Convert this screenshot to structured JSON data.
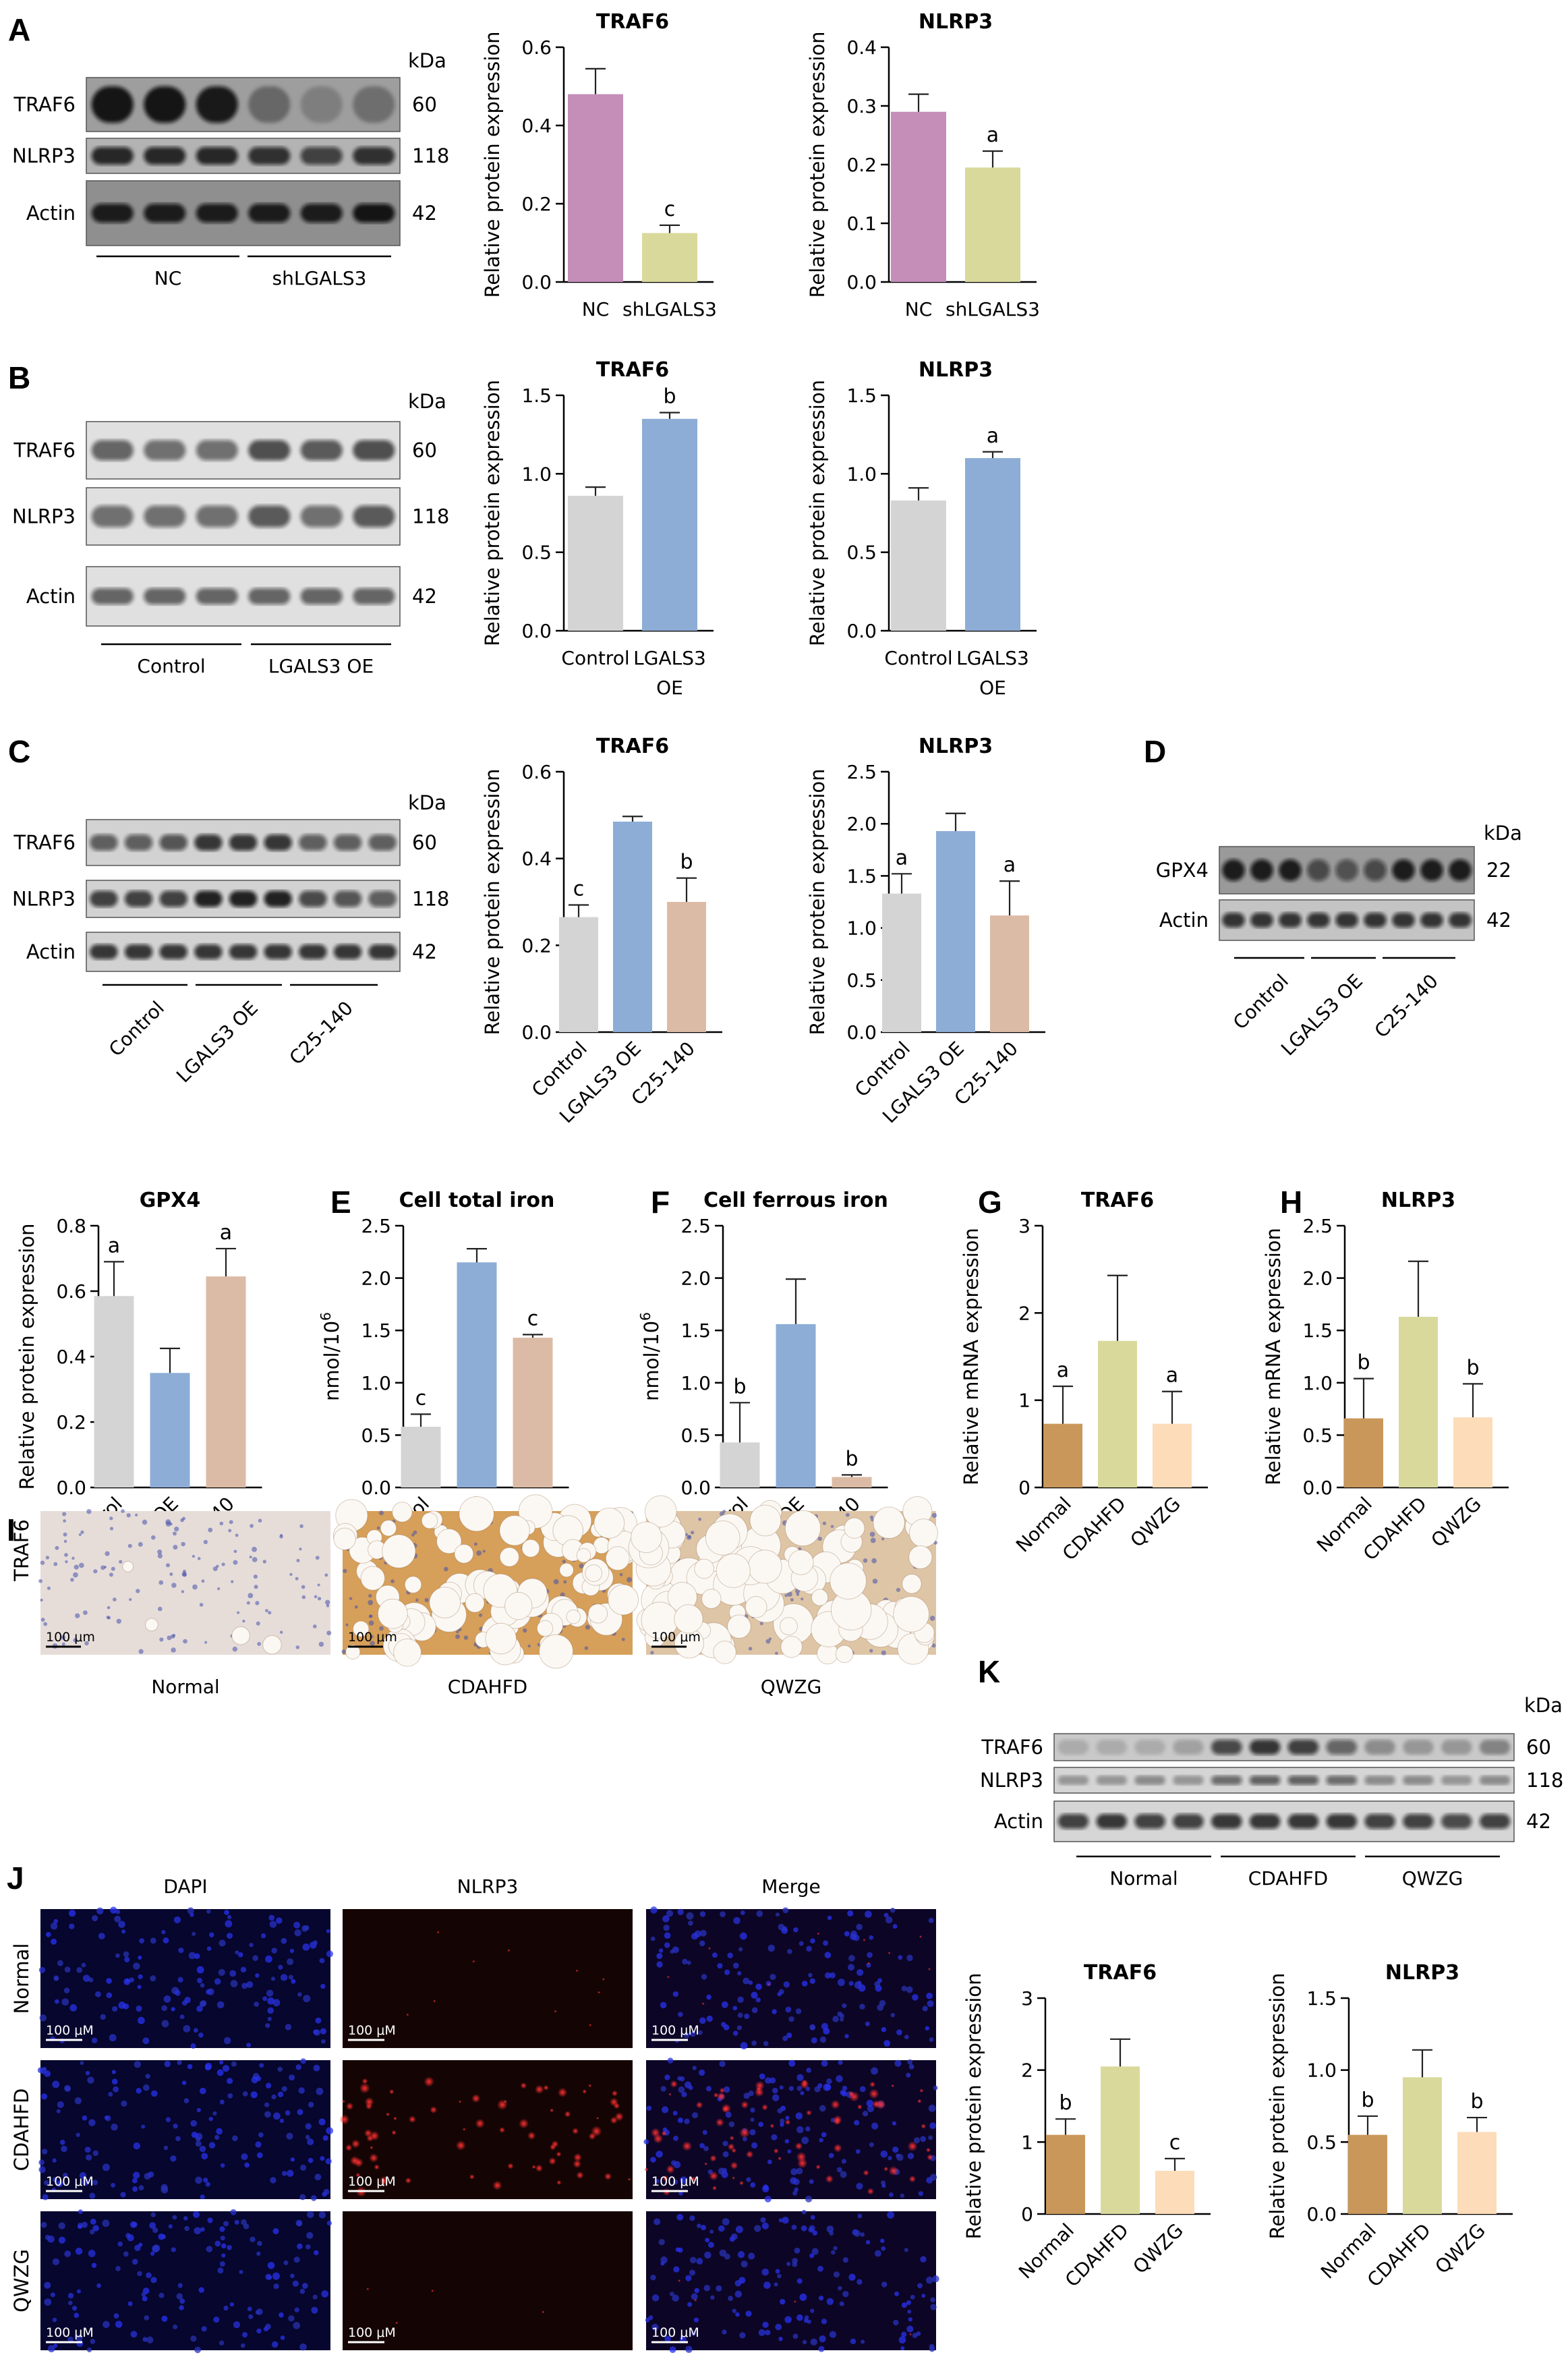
{
  "colors": {
    "pink": "#C48EB9",
    "olive": "#D9D99C",
    "gray": "#D4D4D4",
    "blue": "#8DADD6",
    "tan": "#DCBBA6",
    "brown": "#C9975A",
    "cream": "#FCDCB9"
  },
  "blots": {
    "A": {
      "label": "A",
      "rows": [
        {
          "name": "TRAF6",
          "kda": "60"
        },
        {
          "name": "NLRP3",
          "kda": "118"
        },
        {
          "name": "Actin",
          "kda": "42"
        }
      ],
      "kda_unit": "kDa",
      "groups": [
        "NC",
        "shLGALS3"
      ]
    },
    "B": {
      "label": "B",
      "rows": [
        {
          "name": "TRAF6",
          "kda": "60"
        },
        {
          "name": "NLRP3",
          "kda": "118"
        },
        {
          "name": "Actin",
          "kda": "42"
        }
      ],
      "kda_unit": "kDa",
      "groups": [
        "Control",
        "LGALS3 OE"
      ]
    },
    "C": {
      "label": "C",
      "rows": [
        {
          "name": "TRAF6",
          "kda": "60"
        },
        {
          "name": "NLRP3",
          "kda": "118"
        },
        {
          "name": "Actin",
          "kda": "42"
        }
      ],
      "kda_unit": "kDa",
      "groups": [
        "Control",
        "LGALS3 OE",
        "C25-140"
      ]
    },
    "D": {
      "label": "D",
      "rows": [
        {
          "name": "GPX4",
          "kda": "22"
        },
        {
          "name": "Actin",
          "kda": "42"
        }
      ],
      "kda_unit": "kDa",
      "groups": [
        "Control",
        "LGALS3 OE",
        "C25-140"
      ]
    },
    "K": {
      "label": "K",
      "rows": [
        {
          "name": "TRAF6",
          "kda": "60"
        },
        {
          "name": "NLRP3",
          "kda": "118"
        },
        {
          "name": "Actin",
          "kda": "42"
        }
      ],
      "kda_unit": "kDa",
      "groups": [
        "Normal",
        "CDAHFD",
        "QWZG"
      ]
    }
  },
  "ihc": {
    "label": "I",
    "row_label": "TRAF6",
    "columns": [
      "Normal",
      "CDAHFD",
      "QWZG"
    ],
    "scale": "100 μm"
  },
  "fluor": {
    "label": "J",
    "columns": [
      "DAPI",
      "NLRP3",
      "Merge"
    ],
    "rows": [
      "Normal",
      "CDAHFD",
      "QWZG"
    ],
    "scale": "100 μM"
  },
  "chart_data": [
    {
      "id": "A-TRAF6",
      "label": "A",
      "type": "bar",
      "title": "TRAF6",
      "ylabel": "Relative protein expression",
      "categories": [
        "NC",
        "shLGALS3"
      ],
      "values": [
        0.48,
        0.125
      ],
      "errors": [
        0.065,
        0.02
      ],
      "sig": [
        "",
        "c"
      ],
      "colors": [
        "pink",
        "olive"
      ],
      "ylim": [
        0,
        0.6
      ],
      "yticks": [
        "0.0",
        "0.2",
        "0.4",
        "0.6"
      ]
    },
    {
      "id": "A-NLRP3",
      "label": "",
      "type": "bar",
      "title": "NLRP3",
      "ylabel": "Relative protein expression",
      "categories": [
        "NC",
        "shLGALS3"
      ],
      "values": [
        0.29,
        0.195
      ],
      "errors": [
        0.03,
        0.028
      ],
      "sig": [
        "",
        "a"
      ],
      "colors": [
        "pink",
        "olive"
      ],
      "ylim": [
        0,
        0.4
      ],
      "yticks": [
        "0.0",
        "0.1",
        "0.2",
        "0.3",
        "0.4"
      ]
    },
    {
      "id": "B-TRAF6",
      "label": "B",
      "type": "bar",
      "title": "TRAF6",
      "ylabel": "Relative protein expression",
      "categories": [
        "Control",
        "LGALS3 OE"
      ],
      "values": [
        0.86,
        1.35
      ],
      "errors": [
        0.055,
        0.04
      ],
      "sig": [
        "",
        "b"
      ],
      "colors": [
        "gray",
        "blue"
      ],
      "ylim": [
        0,
        1.5
      ],
      "yticks": [
        "0.0",
        "0.5",
        "1.0",
        "1.5"
      ]
    },
    {
      "id": "B-NLRP3",
      "label": "",
      "type": "bar",
      "title": "NLRP3",
      "ylabel": "Relative protein expression",
      "categories": [
        "Control",
        "LGALS3 OE"
      ],
      "values": [
        0.83,
        1.1
      ],
      "errors": [
        0.08,
        0.04
      ],
      "sig": [
        "",
        "a"
      ],
      "colors": [
        "gray",
        "blue"
      ],
      "ylim": [
        0,
        1.5
      ],
      "yticks": [
        "0.0",
        "0.5",
        "1.0",
        "1.5"
      ]
    },
    {
      "id": "C-TRAF6",
      "label": "C",
      "type": "bar",
      "title": "TRAF6",
      "ylabel": "Relative protein expression",
      "categories": [
        "Control",
        "LGALS3 OE",
        "C25-140"
      ],
      "values": [
        0.265,
        0.485,
        0.3
      ],
      "errors": [
        0.028,
        0.012,
        0.055
      ],
      "sig": [
        "c",
        "",
        "b"
      ],
      "colors": [
        "gray",
        "blue",
        "tan"
      ],
      "ylim": [
        0,
        0.6
      ],
      "yticks": [
        "0.0",
        "0.2",
        "0.4",
        "0.6"
      ]
    },
    {
      "id": "C-NLRP3",
      "label": "",
      "type": "bar",
      "title": "NLRP3",
      "ylabel": "Relative protein expression",
      "categories": [
        "Control",
        "LGALS3 OE",
        "C25-140"
      ],
      "values": [
        1.33,
        1.93,
        1.12
      ],
      "errors": [
        0.19,
        0.17,
        0.33
      ],
      "sig": [
        "a",
        "",
        "a"
      ],
      "colors": [
        "gray",
        "blue",
        "tan"
      ],
      "ylim": [
        0,
        2.5
      ],
      "yticks": [
        "0.0",
        "0.5",
        "1.0",
        "1.5",
        "2.0",
        "2.5"
      ]
    },
    {
      "id": "D-GPX4",
      "label": "",
      "type": "bar",
      "title": "GPX4",
      "ylabel": "Relative protein expression",
      "categories": [
        "Control",
        "LGALS3 OE",
        "C25-140"
      ],
      "values": [
        0.585,
        0.35,
        0.645
      ],
      "errors": [
        0.105,
        0.075,
        0.085
      ],
      "sig": [
        "a",
        "",
        "a"
      ],
      "colors": [
        "gray",
        "blue",
        "tan"
      ],
      "ylim": [
        0,
        0.8
      ],
      "yticks": [
        "0.0",
        "0.2",
        "0.4",
        "0.6",
        "0.8"
      ]
    },
    {
      "id": "E",
      "label": "E",
      "type": "bar",
      "title": "Cell total iron",
      "ylabel": "nmol/10",
      "ylabel_sup": "6",
      "categories": [
        "Control",
        "LGALS3 OE",
        "C25-140"
      ],
      "values": [
        0.58,
        2.15,
        1.43
      ],
      "errors": [
        0.12,
        0.13,
        0.03
      ],
      "sig": [
        "c",
        "",
        "c"
      ],
      "colors": [
        "gray",
        "blue",
        "tan"
      ],
      "ylim": [
        0,
        2.5
      ],
      "yticks": [
        "0.0",
        "0.5",
        "1.0",
        "1.5",
        "2.0",
        "2.5"
      ]
    },
    {
      "id": "F",
      "label": "F",
      "type": "bar",
      "title": "Cell ferrous iron",
      "ylabel": "nmol/10",
      "ylabel_sup": "6",
      "categories": [
        "Control",
        "LGALS3 OE",
        "C25-140"
      ],
      "values": [
        0.43,
        1.56,
        0.1
      ],
      "errors": [
        0.38,
        0.43,
        0.02
      ],
      "sig": [
        "b",
        "",
        "b"
      ],
      "colors": [
        "gray",
        "blue",
        "tan"
      ],
      "ylim": [
        0,
        2.5
      ],
      "yticks": [
        "0.0",
        "0.5",
        "1.0",
        "1.5",
        "2.0",
        "2.5"
      ]
    },
    {
      "id": "G",
      "label": "G",
      "type": "bar",
      "title": "TRAF6",
      "ylabel": "Relative mRNA expression",
      "categories": [
        "Normal",
        "CDAHFD",
        "QWZG"
      ],
      "values": [
        0.73,
        1.68,
        0.73
      ],
      "errors": [
        0.43,
        0.75,
        0.37
      ],
      "sig": [
        "a",
        "",
        "a"
      ],
      "colors": [
        "brown",
        "olive",
        "cream"
      ],
      "ylim": [
        0,
        3
      ],
      "yticks": [
        "0",
        "1",
        "2",
        "3"
      ]
    },
    {
      "id": "H",
      "label": "H",
      "type": "bar",
      "title": "NLRP3",
      "ylabel": "Relative mRNA expression",
      "categories": [
        "Normal",
        "CDAHFD",
        "QWZG"
      ],
      "values": [
        0.66,
        1.63,
        0.67
      ],
      "errors": [
        0.38,
        0.53,
        0.32
      ],
      "sig": [
        "b",
        "",
        "b"
      ],
      "colors": [
        "brown",
        "olive",
        "cream"
      ],
      "ylim": [
        0,
        2.5
      ],
      "yticks": [
        "0.0",
        "0.5",
        "1.0",
        "1.5",
        "2.0",
        "2.5"
      ]
    },
    {
      "id": "K-TRAF6",
      "label": "",
      "type": "bar",
      "title": "TRAF6",
      "ylabel": "Relative protein expression",
      "categories": [
        "Normal",
        "CDAHFD",
        "QWZG"
      ],
      "values": [
        1.1,
        2.05,
        0.6
      ],
      "errors": [
        0.22,
        0.38,
        0.17
      ],
      "sig": [
        "b",
        "",
        "c"
      ],
      "colors": [
        "brown",
        "olive",
        "cream"
      ],
      "ylim": [
        0,
        3
      ],
      "yticks": [
        "0",
        "1",
        "2",
        "3"
      ]
    },
    {
      "id": "K-NLRP3",
      "label": "",
      "type": "bar",
      "title": "NLRP3",
      "ylabel": "Relative protein expression",
      "categories": [
        "Normal",
        "CDAHFD",
        "QWZG"
      ],
      "values": [
        0.55,
        0.95,
        0.57
      ],
      "errors": [
        0.13,
        0.19,
        0.1
      ],
      "sig": [
        "b",
        "",
        "b"
      ],
      "colors": [
        "brown",
        "olive",
        "cream"
      ],
      "ylim": [
        0,
        1.5
      ],
      "yticks": [
        "0.0",
        "0.5",
        "1.0",
        "1.5"
      ]
    }
  ]
}
